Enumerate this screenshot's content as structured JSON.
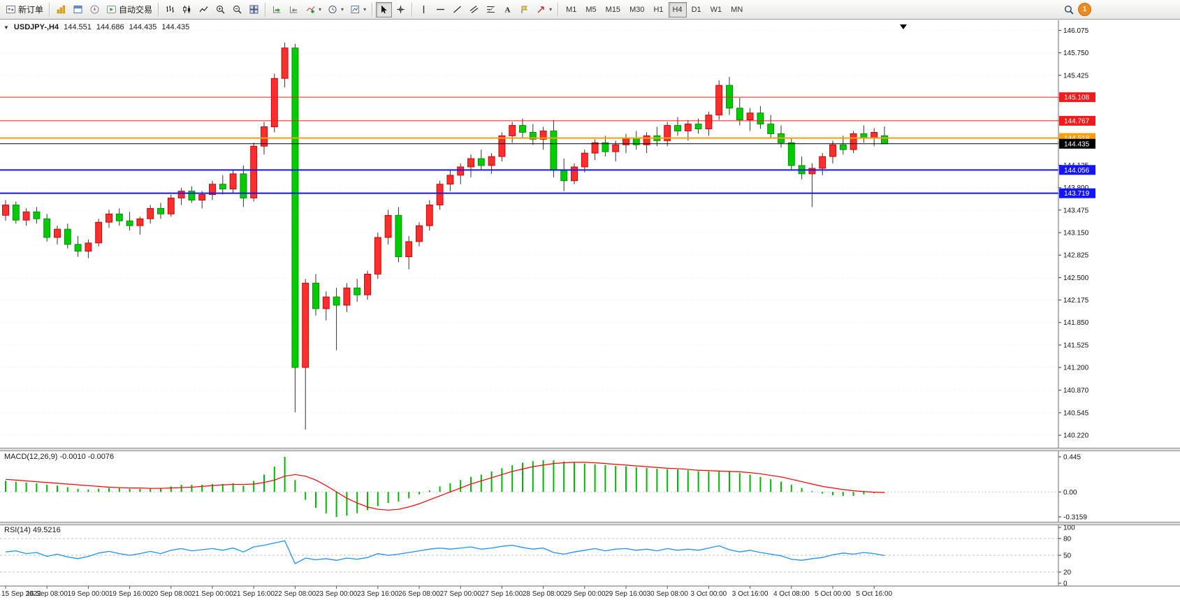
{
  "toolbar": {
    "new_order_label": "新订单",
    "autotrading_label": "自动交易",
    "timeframes": [
      "M1",
      "M5",
      "M15",
      "M30",
      "H1",
      "H4",
      "D1",
      "W1",
      "MN"
    ],
    "active_timeframe": "H4",
    "notification_count": "1"
  },
  "chart": {
    "symbol_period": "USDJPY-,H4",
    "open": "144.551",
    "high": "144.686",
    "low": "144.435",
    "close": "144.435"
  },
  "chart_data": {
    "type": "candlestick",
    "symbol": "USDJPY-",
    "period": "H4",
    "colors": {
      "up": "#ff2e2e",
      "up_stroke": "#c00000",
      "down": "#00cc00",
      "down_stroke": "#008800",
      "wick": "#333333",
      "macd_hist": "#00b800",
      "macd_signal": "#ff0000",
      "rsi_line": "#1e90ff"
    },
    "price_axis": {
      "ticks": [
        "146.075",
        "145.750",
        "145.425",
        "145.100",
        "144.775",
        "144.450",
        "144.125",
        "143.800",
        "143.475",
        "143.150",
        "142.825",
        "142.500",
        "142.175",
        "141.850",
        "141.525",
        "141.200",
        "140.870",
        "140.545",
        "140.220"
      ]
    },
    "hlines": [
      {
        "price": 145.108,
        "label": "145.108",
        "color": "#ee1c1c",
        "width": 1
      },
      {
        "price": 144.767,
        "label": "144.767",
        "color": "#ee1c1c",
        "width": 1
      },
      {
        "price": 144.518,
        "label": "144.518",
        "color": "#ffa000",
        "width": 2
      },
      {
        "price": 144.435,
        "label": "144.435",
        "color": "#000000",
        "width": 1
      },
      {
        "price": 144.056,
        "label": "144.056",
        "color": "#1414ff",
        "width": 2
      },
      {
        "price": 143.719,
        "label": "143.719",
        "color": "#1414ff",
        "width": 2
      }
    ],
    "time_labels": [
      "15 Sep 2022",
      "16 Sep 08:00",
      "19 Sep 00:00",
      "19 Sep 16:00",
      "20 Sep 08:00",
      "21 Sep 00:00",
      "21 Sep 16:00",
      "22 Sep 08:00",
      "23 Sep 00:00",
      "23 Sep 16:00",
      "26 Sep 08:00",
      "27 Sep 00:00",
      "27 Sep 16:00",
      "28 Sep 08:00",
      "29 Sep 00:00",
      "29 Sep 16:00",
      "30 Sep 08:00",
      "3 Oct 00:00",
      "3 Oct 16:00",
      "4 Oct 08:00",
      "5 Oct 00:00",
      "5 Oct 16:00"
    ],
    "label_every_n_candles": 4,
    "candles": [
      [
        143.4,
        143.62,
        143.32,
        143.55
      ],
      [
        143.55,
        143.6,
        143.28,
        143.33
      ],
      [
        143.33,
        143.5,
        143.25,
        143.45
      ],
      [
        143.45,
        143.52,
        143.28,
        143.35
      ],
      [
        143.35,
        143.42,
        143.02,
        143.08
      ],
      [
        143.08,
        143.25,
        142.98,
        143.2
      ],
      [
        143.2,
        143.28,
        142.92,
        142.98
      ],
      [
        142.98,
        143.1,
        142.8,
        142.88
      ],
      [
        142.88,
        143.05,
        142.78,
        143.0
      ],
      [
        143.0,
        143.35,
        142.95,
        143.3
      ],
      [
        143.3,
        143.48,
        143.22,
        143.42
      ],
      [
        143.42,
        143.5,
        143.25,
        143.32
      ],
      [
        143.32,
        143.45,
        143.18,
        143.25
      ],
      [
        143.25,
        143.38,
        143.12,
        143.35
      ],
      [
        143.35,
        143.55,
        143.28,
        143.5
      ],
      [
        143.5,
        143.58,
        143.35,
        143.42
      ],
      [
        143.42,
        143.7,
        143.38,
        143.65
      ],
      [
        143.65,
        143.8,
        143.55,
        143.75
      ],
      [
        143.75,
        143.82,
        143.58,
        143.62
      ],
      [
        143.62,
        143.75,
        143.5,
        143.7
      ],
      [
        143.7,
        143.9,
        143.62,
        143.85
      ],
      [
        143.85,
        143.98,
        143.7,
        143.78
      ],
      [
        143.78,
        144.05,
        143.72,
        144.0
      ],
      [
        144.0,
        144.12,
        143.52,
        143.65
      ],
      [
        143.65,
        144.45,
        143.6,
        144.4
      ],
      [
        144.4,
        144.75,
        144.28,
        144.68
      ],
      [
        144.68,
        145.45,
        144.6,
        145.38
      ],
      [
        145.38,
        145.9,
        145.25,
        145.82
      ],
      [
        145.82,
        145.88,
        140.55,
        141.2
      ],
      [
        141.2,
        142.48,
        140.3,
        142.42
      ],
      [
        142.42,
        142.55,
        141.95,
        142.05
      ],
      [
        142.05,
        142.3,
        141.88,
        142.22
      ],
      [
        142.22,
        142.35,
        141.45,
        142.1
      ],
      [
        142.1,
        142.42,
        142.0,
        142.35
      ],
      [
        142.35,
        142.48,
        142.15,
        142.25
      ],
      [
        142.25,
        142.6,
        142.18,
        142.55
      ],
      [
        142.55,
        143.15,
        142.48,
        143.08
      ],
      [
        143.08,
        143.48,
        142.98,
        143.4
      ],
      [
        143.4,
        143.52,
        142.72,
        142.8
      ],
      [
        142.8,
        143.1,
        142.62,
        143.02
      ],
      [
        143.02,
        143.3,
        142.95,
        143.25
      ],
      [
        143.25,
        143.62,
        143.18,
        143.55
      ],
      [
        143.55,
        143.9,
        143.48,
        143.85
      ],
      [
        143.85,
        144.05,
        143.75,
        143.98
      ],
      [
        143.98,
        144.15,
        143.85,
        144.1
      ],
      [
        144.1,
        144.28,
        143.95,
        144.22
      ],
      [
        144.22,
        144.35,
        144.05,
        144.12
      ],
      [
        144.12,
        144.3,
        144.0,
        144.25
      ],
      [
        144.25,
        144.6,
        144.18,
        144.55
      ],
      [
        144.55,
        144.75,
        144.45,
        144.7
      ],
      [
        144.7,
        144.8,
        144.52,
        144.6
      ],
      [
        144.6,
        144.72,
        144.42,
        144.5
      ],
      [
        144.5,
        144.68,
        144.35,
        144.62
      ],
      [
        144.62,
        144.78,
        143.95,
        144.05
      ],
      [
        144.05,
        144.22,
        143.75,
        143.9
      ],
      [
        143.9,
        144.15,
        143.85,
        144.1
      ],
      [
        144.1,
        144.35,
        144.02,
        144.3
      ],
      [
        144.3,
        144.5,
        144.2,
        144.45
      ],
      [
        144.45,
        144.55,
        144.25,
        144.32
      ],
      [
        144.32,
        144.48,
        144.18,
        144.42
      ],
      [
        144.42,
        144.58,
        144.3,
        144.52
      ],
      [
        144.52,
        144.62,
        144.35,
        144.42
      ],
      [
        144.42,
        144.6,
        144.3,
        144.55
      ],
      [
        144.55,
        144.68,
        144.4,
        144.48
      ],
      [
        144.48,
        144.75,
        144.4,
        144.7
      ],
      [
        144.7,
        144.82,
        144.55,
        144.62
      ],
      [
        144.62,
        144.78,
        144.48,
        144.72
      ],
      [
        144.72,
        144.8,
        144.58,
        144.65
      ],
      [
        144.65,
        144.9,
        144.55,
        144.85
      ],
      [
        144.85,
        145.35,
        144.78,
        145.28
      ],
      [
        145.28,
        145.4,
        144.85,
        144.95
      ],
      [
        144.95,
        145.1,
        144.7,
        144.78
      ],
      [
        144.78,
        144.95,
        144.62,
        144.88
      ],
      [
        144.88,
        144.98,
        144.65,
        144.72
      ],
      [
        144.72,
        144.85,
        144.52,
        144.58
      ],
      [
        144.58,
        144.7,
        144.38,
        144.45
      ],
      [
        144.45,
        144.52,
        144.05,
        144.12
      ],
      [
        144.12,
        144.25,
        143.92,
        144.0
      ],
      [
        144.0,
        144.15,
        143.52,
        144.08
      ],
      [
        144.08,
        144.3,
        143.98,
        144.25
      ],
      [
        144.25,
        144.48,
        144.15,
        144.42
      ],
      [
        144.42,
        144.55,
        144.28,
        144.35
      ],
      [
        144.35,
        144.62,
        144.3,
        144.58
      ],
      [
        144.58,
        144.7,
        144.45,
        144.52
      ],
      [
        144.52,
        144.66,
        144.4,
        144.6
      ],
      [
        144.551,
        144.686,
        144.435,
        144.435
      ]
    ],
    "macd": {
      "label": "MACD(12,26,9) -0.0010 -0.0076",
      "axis": [
        "0.445",
        "0.00",
        "-0.3159"
      ],
      "max": 0.445,
      "min": -0.3159,
      "histogram": [
        0.14,
        0.13,
        0.12,
        0.11,
        0.09,
        0.08,
        0.06,
        0.04,
        0.03,
        0.04,
        0.05,
        0.05,
        0.04,
        0.04,
        0.05,
        0.05,
        0.07,
        0.09,
        0.09,
        0.09,
        0.1,
        0.1,
        0.11,
        0.08,
        0.14,
        0.22,
        0.32,
        0.445,
        0.15,
        -0.1,
        -0.2,
        -0.27,
        -0.3159,
        -0.3,
        -0.27,
        -0.23,
        -0.18,
        -0.14,
        -0.12,
        -0.08,
        -0.03,
        0.02,
        0.07,
        0.11,
        0.15,
        0.19,
        0.22,
        0.26,
        0.3,
        0.34,
        0.37,
        0.39,
        0.4,
        0.4,
        0.385,
        0.37,
        0.36,
        0.35,
        0.34,
        0.33,
        0.325,
        0.315,
        0.305,
        0.295,
        0.29,
        0.285,
        0.275,
        0.265,
        0.26,
        0.27,
        0.26,
        0.24,
        0.22,
        0.19,
        0.16,
        0.13,
        0.09,
        0.05,
        0.01,
        -0.02,
        -0.04,
        -0.05,
        -0.05,
        -0.03,
        -0.015,
        -0.001
      ],
      "signal": [
        0.16,
        0.15,
        0.14,
        0.13,
        0.12,
        0.11,
        0.1,
        0.09,
        0.08,
        0.07,
        0.06,
        0.055,
        0.05,
        0.05,
        0.045,
        0.045,
        0.05,
        0.055,
        0.06,
        0.07,
        0.08,
        0.09,
        0.095,
        0.095,
        0.1,
        0.12,
        0.15,
        0.2,
        0.22,
        0.2,
        0.15,
        0.08,
        0.0,
        -0.08,
        -0.14,
        -0.19,
        -0.22,
        -0.23,
        -0.22,
        -0.19,
        -0.15,
        -0.1,
        -0.05,
        0.0,
        0.05,
        0.1,
        0.14,
        0.18,
        0.22,
        0.26,
        0.29,
        0.32,
        0.34,
        0.36,
        0.37,
        0.375,
        0.375,
        0.37,
        0.36,
        0.35,
        0.34,
        0.33,
        0.32,
        0.31,
        0.3,
        0.295,
        0.285,
        0.275,
        0.27,
        0.265,
        0.26,
        0.255,
        0.245,
        0.23,
        0.21,
        0.19,
        0.16,
        0.13,
        0.1,
        0.07,
        0.05,
        0.03,
        0.015,
        0.005,
        -0.003,
        -0.0076
      ]
    },
    "rsi": {
      "label": "RSI(14) 49.5216",
      "axis": [
        "100",
        "80",
        "50",
        "20",
        "0"
      ],
      "levels": [
        80,
        50,
        20
      ],
      "max": 100,
      "min": 0,
      "values": [
        56,
        58,
        53,
        55,
        48,
        52,
        47,
        44,
        48,
        54,
        57,
        53,
        50,
        53,
        57,
        53,
        59,
        62,
        58,
        60,
        62,
        59,
        63,
        56,
        65,
        68,
        72,
        76,
        35,
        45,
        42,
        44,
        41,
        45,
        43,
        46,
        53,
        50,
        52,
        55,
        58,
        61,
        63,
        61,
        63,
        65,
        61,
        63,
        66,
        68,
        64,
        61,
        63,
        55,
        52,
        56,
        59,
        62,
        58,
        61,
        62,
        59,
        61,
        58,
        62,
        59,
        61,
        59,
        63,
        67,
        60,
        56,
        59,
        55,
        52,
        49,
        43,
        41,
        44,
        46,
        51,
        54,
        52,
        55,
        53,
        49.5216
      ]
    }
  }
}
